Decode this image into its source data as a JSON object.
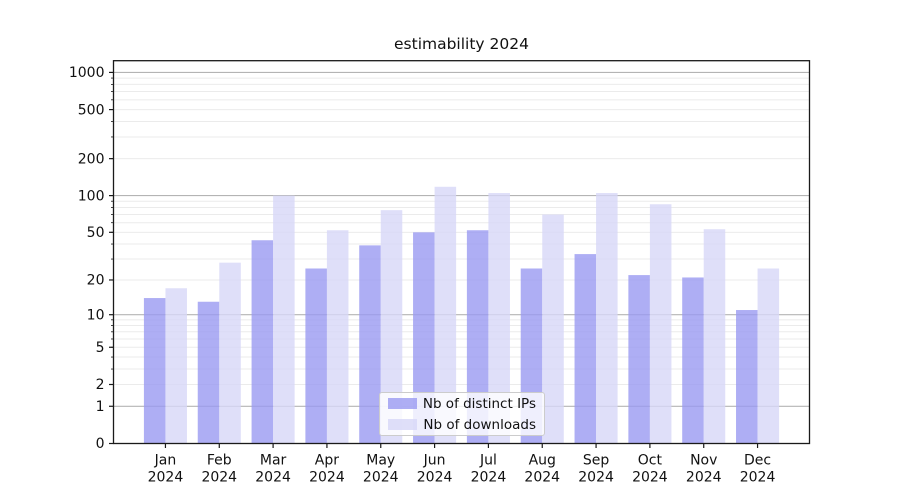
{
  "figure_title": "estimability 2024",
  "chart_data": {
    "type": "bar",
    "title": "estimability 2024",
    "categories": [
      "Jan",
      "Feb",
      "Mar",
      "Apr",
      "May",
      "Jun",
      "Jul",
      "Aug",
      "Sep",
      "Oct",
      "Nov",
      "Dec"
    ],
    "category_year": "2024",
    "series": [
      {
        "name": "Nb of distinct IPs",
        "color": "#9a9af1",
        "values": [
          14,
          13,
          43,
          25,
          39,
          50,
          52,
          25,
          33,
          22,
          21,
          11
        ]
      },
      {
        "name": "Nb of downloads",
        "color": "#d7d7f7",
        "values": [
          17,
          28,
          100,
          52,
          76,
          118,
          105,
          70,
          105,
          85,
          53,
          25
        ]
      }
    ],
    "yscale": "log1p",
    "yticks": [
      0,
      1,
      2,
      5,
      10,
      20,
      50,
      100,
      200,
      500,
      1000
    ],
    "major_gridlines": [
      1,
      10,
      100,
      1000
    ],
    "ylim": [
      0,
      1244
    ],
    "xlabel": "",
    "ylabel": "",
    "grid": "horizontal, major + minor",
    "legend_position": "lower center",
    "bar_alpha": 0.8
  },
  "colors": {
    "grid_major": "#b4b4b4",
    "grid_minor": "#ebebeb",
    "spine": "#1a1a1a",
    "tick_text": "#111111",
    "legend_border": "#cccccc",
    "background": "#ffffff"
  }
}
